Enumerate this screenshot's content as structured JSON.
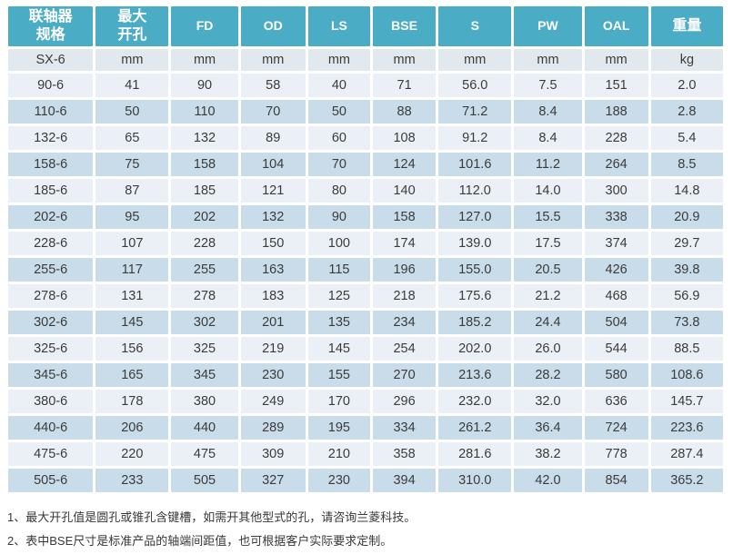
{
  "table": {
    "headers": [
      {
        "line1": "联轴器",
        "line2": "规格"
      },
      {
        "line1": "最大",
        "line2": "开孔"
      },
      {
        "line1": "FD",
        "line2": ""
      },
      {
        "line1": "OD",
        "line2": ""
      },
      {
        "line1": "LS",
        "line2": ""
      },
      {
        "line1": "BSE",
        "line2": ""
      },
      {
        "line1": "S",
        "line2": ""
      },
      {
        "line1": "PW",
        "line2": ""
      },
      {
        "line1": "OAL",
        "line2": ""
      },
      {
        "line1": "重量",
        "line2": ""
      }
    ],
    "units_row": [
      "SX-6",
      "mm",
      "mm",
      "mm",
      "mm",
      "mm",
      "mm",
      "mm",
      "mm",
      "kg"
    ],
    "rows": [
      [
        "90-6",
        "41",
        "90",
        "58",
        "40",
        "71",
        "56.0",
        "7.5",
        "151",
        "2.0"
      ],
      [
        "110-6",
        "50",
        "110",
        "70",
        "50",
        "88",
        "71.2",
        "8.4",
        "188",
        "2.8"
      ],
      [
        "132-6",
        "65",
        "132",
        "89",
        "60",
        "108",
        "91.2",
        "8.4",
        "228",
        "5.4"
      ],
      [
        "158-6",
        "75",
        "158",
        "104",
        "70",
        "124",
        "101.6",
        "11.2",
        "264",
        "8.5"
      ],
      [
        "185-6",
        "87",
        "185",
        "121",
        "80",
        "140",
        "112.0",
        "14.0",
        "300",
        "14.8"
      ],
      [
        "202-6",
        "95",
        "202",
        "132",
        "90",
        "158",
        "127.0",
        "15.5",
        "338",
        "20.9"
      ],
      [
        "228-6",
        "107",
        "228",
        "150",
        "100",
        "174",
        "139.0",
        "17.5",
        "374",
        "29.7"
      ],
      [
        "255-6",
        "117",
        "255",
        "163",
        "115",
        "196",
        "155.0",
        "20.5",
        "426",
        "39.8"
      ],
      [
        "278-6",
        "131",
        "278",
        "183",
        "125",
        "218",
        "175.6",
        "21.2",
        "468",
        "56.9"
      ],
      [
        "302-6",
        "145",
        "302",
        "201",
        "135",
        "234",
        "185.2",
        "24.4",
        "504",
        "73.8"
      ],
      [
        "325-6",
        "156",
        "325",
        "219",
        "145",
        "254",
        "202.0",
        "26.0",
        "544",
        "88.5"
      ],
      [
        "345-6",
        "165",
        "345",
        "230",
        "155",
        "270",
        "213.6",
        "28.2",
        "580",
        "108.6"
      ],
      [
        "380-6",
        "178",
        "380",
        "249",
        "170",
        "296",
        "232.0",
        "32.0",
        "636",
        "145.7"
      ],
      [
        "440-6",
        "206",
        "440",
        "289",
        "195",
        "334",
        "261.2",
        "36.4",
        "724",
        "223.6"
      ],
      [
        "475-6",
        "220",
        "475",
        "309",
        "210",
        "358",
        "281.6",
        "38.2",
        "778",
        "287.4"
      ],
      [
        "505-6",
        "233",
        "505",
        "327",
        "230",
        "394",
        "310.0",
        "42.0",
        "854",
        "365.2"
      ]
    ]
  },
  "notes": {
    "line1": "1、最大开孔值是圆孔或锥孔含键槽，如需开其他型式的孔，请咨询兰菱科技。",
    "line2": "2、表中BSE尺寸是标准产品的轴端间距值，也可根据客户实际要求定制。"
  },
  "colors": {
    "header_bg": "#4BACC6",
    "header_text": "#FFFFFF",
    "row_light": "#EAF0F6",
    "row_dark": "#C9DCE9",
    "units_row_bg": "#E1E8EE",
    "cell_text": "#3B3B3B",
    "note_text": "#383838"
  }
}
